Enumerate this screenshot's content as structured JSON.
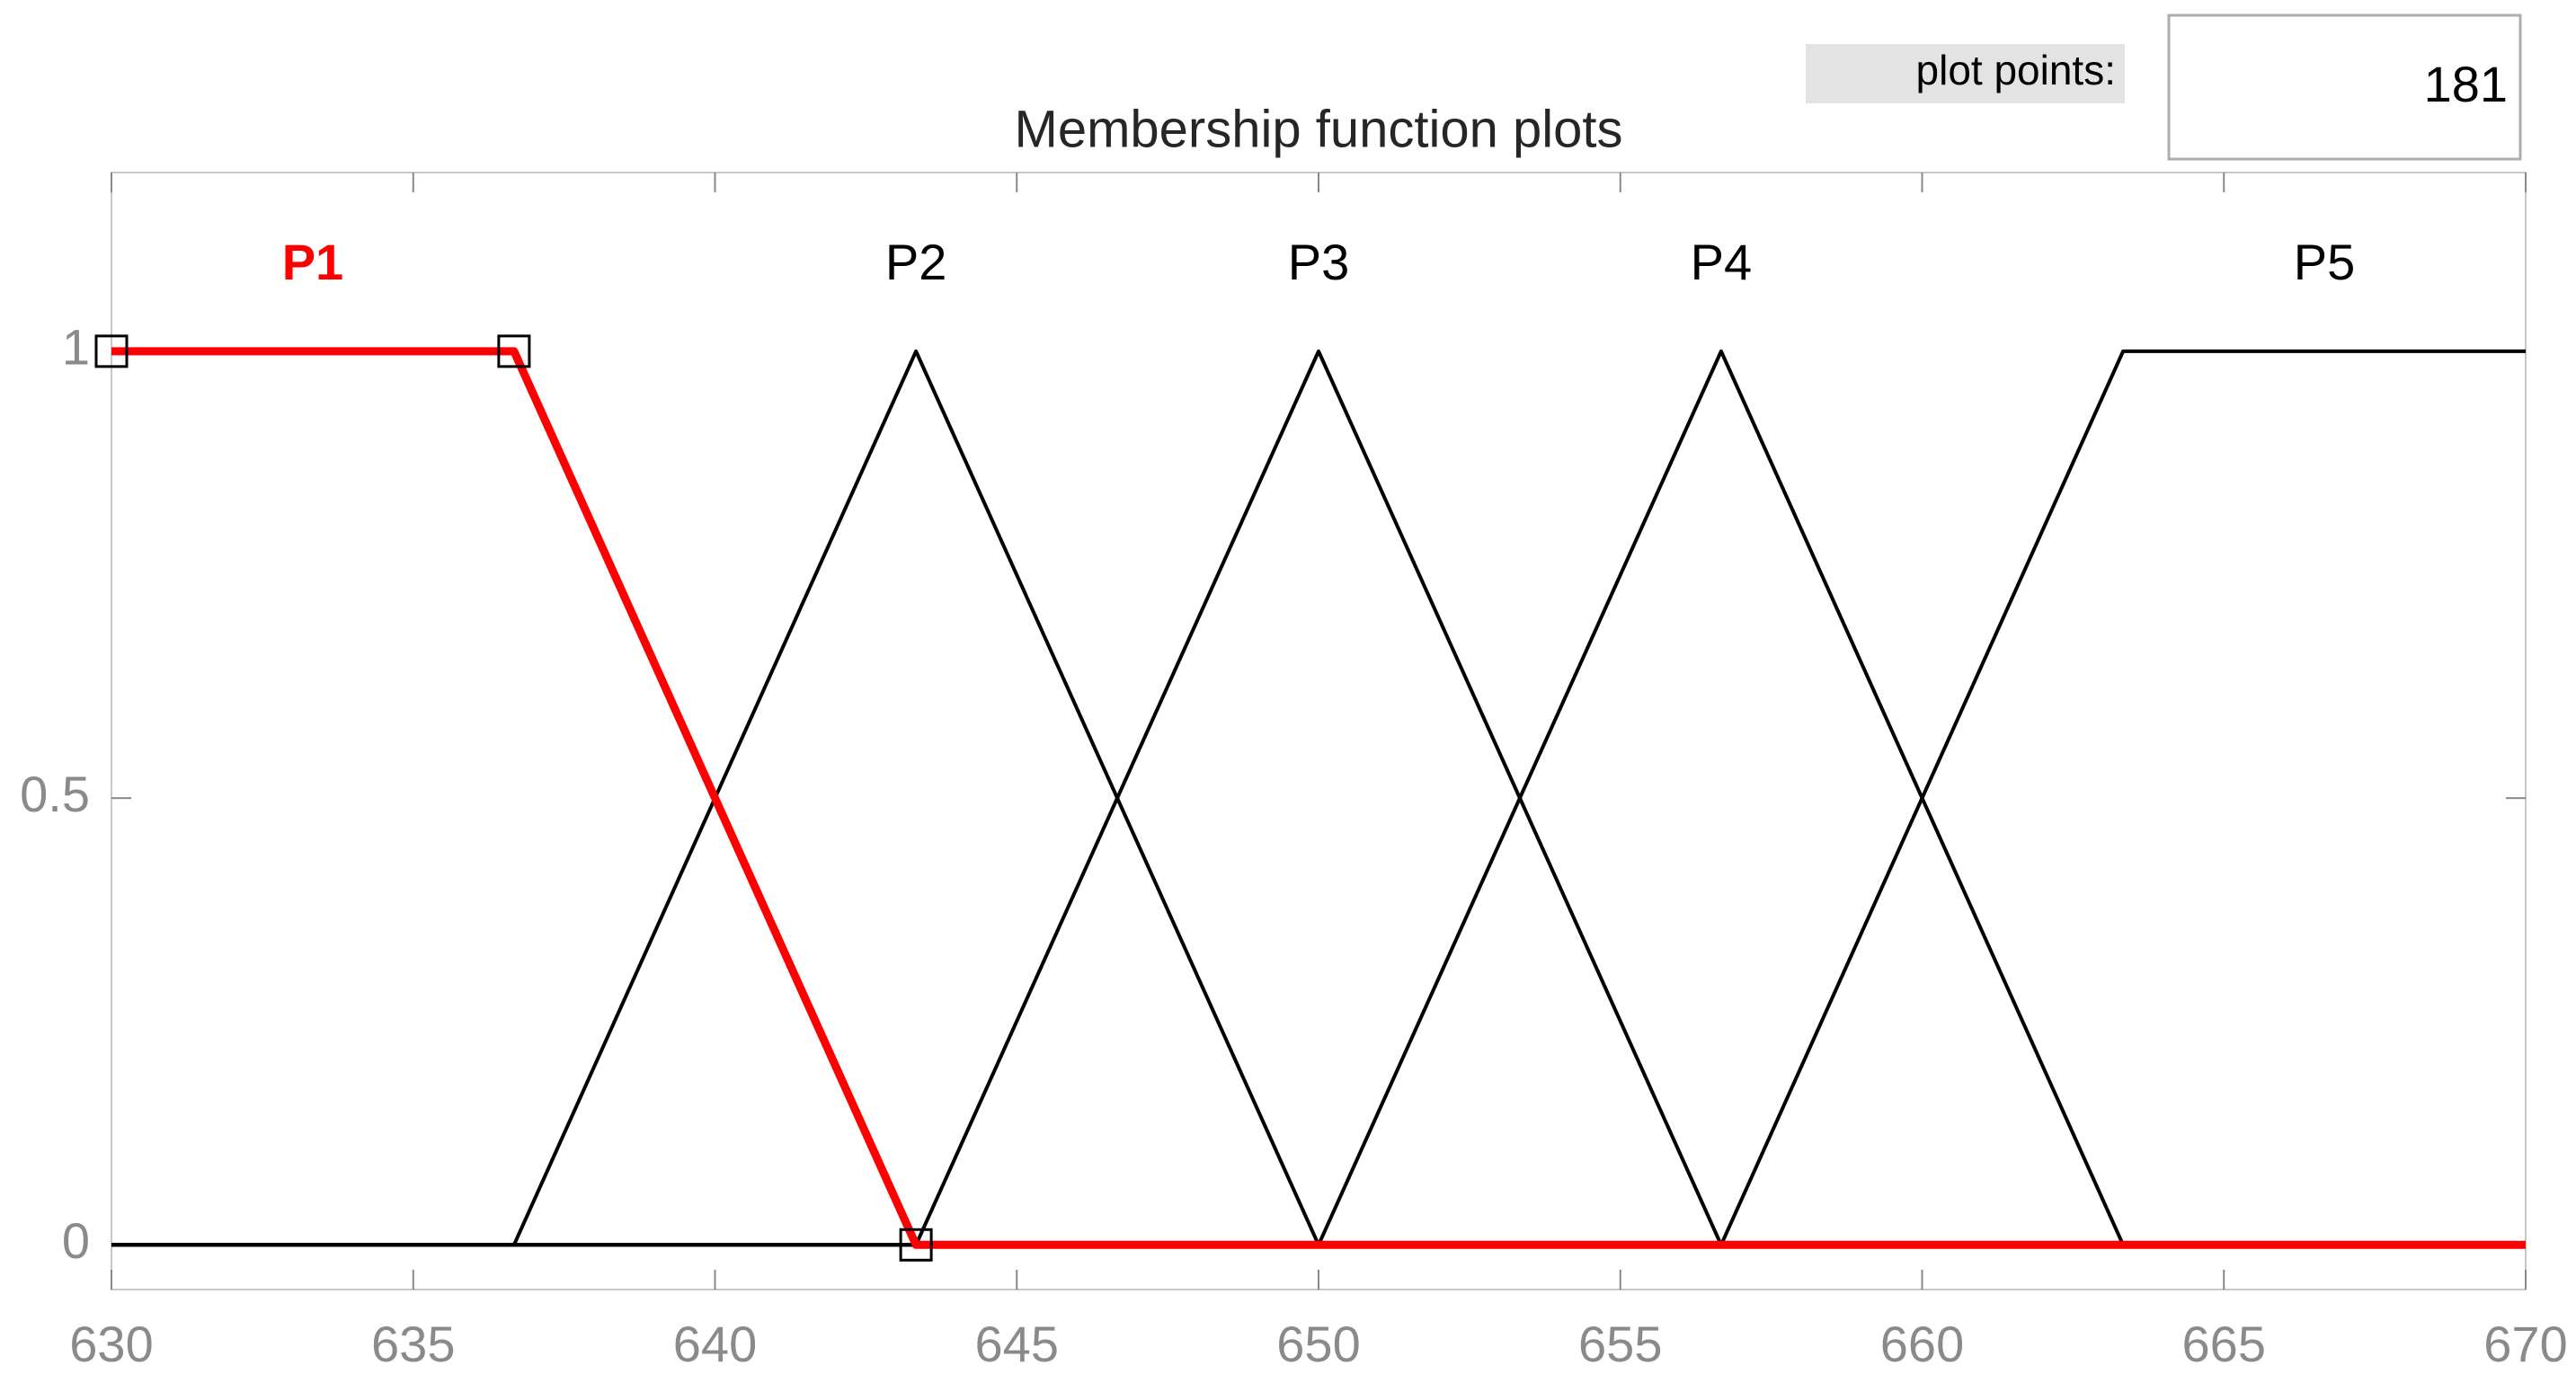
{
  "plot_points": {
    "label": "plot points:",
    "value": 181
  },
  "chart_data": {
    "type": "line",
    "title": "Membership function plots",
    "xlim": [
      630,
      670
    ],
    "xticks": [
      630,
      635,
      640,
      645,
      650,
      655,
      660,
      665,
      670
    ],
    "ylim": [
      -0.05,
      1.2
    ],
    "yticks": [
      0,
      0.5,
      1
    ],
    "grid": false,
    "series": [
      {
        "name": "P1",
        "color": "#ff0000",
        "selected": true,
        "x": [
          630,
          636.67,
          643.33,
          670
        ],
        "values": [
          1,
          1,
          0,
          0
        ]
      },
      {
        "name": "P2",
        "color": "#000000",
        "selected": false,
        "x": [
          630,
          636.67,
          643.33,
          650,
          670
        ],
        "values": [
          0,
          0,
          1,
          0,
          0
        ]
      },
      {
        "name": "P3",
        "color": "#000000",
        "selected": false,
        "x": [
          630,
          643.33,
          650,
          656.67,
          670
        ],
        "values": [
          0,
          0,
          1,
          0,
          0
        ]
      },
      {
        "name": "P4",
        "color": "#000000",
        "selected": false,
        "x": [
          630,
          650,
          656.67,
          663.33,
          670
        ],
        "values": [
          0,
          0,
          1,
          0,
          0
        ]
      },
      {
        "name": "P5",
        "color": "#000000",
        "selected": false,
        "x": [
          630,
          656.67,
          663.33,
          670
        ],
        "values": [
          0,
          0,
          1,
          1
        ]
      }
    ]
  }
}
